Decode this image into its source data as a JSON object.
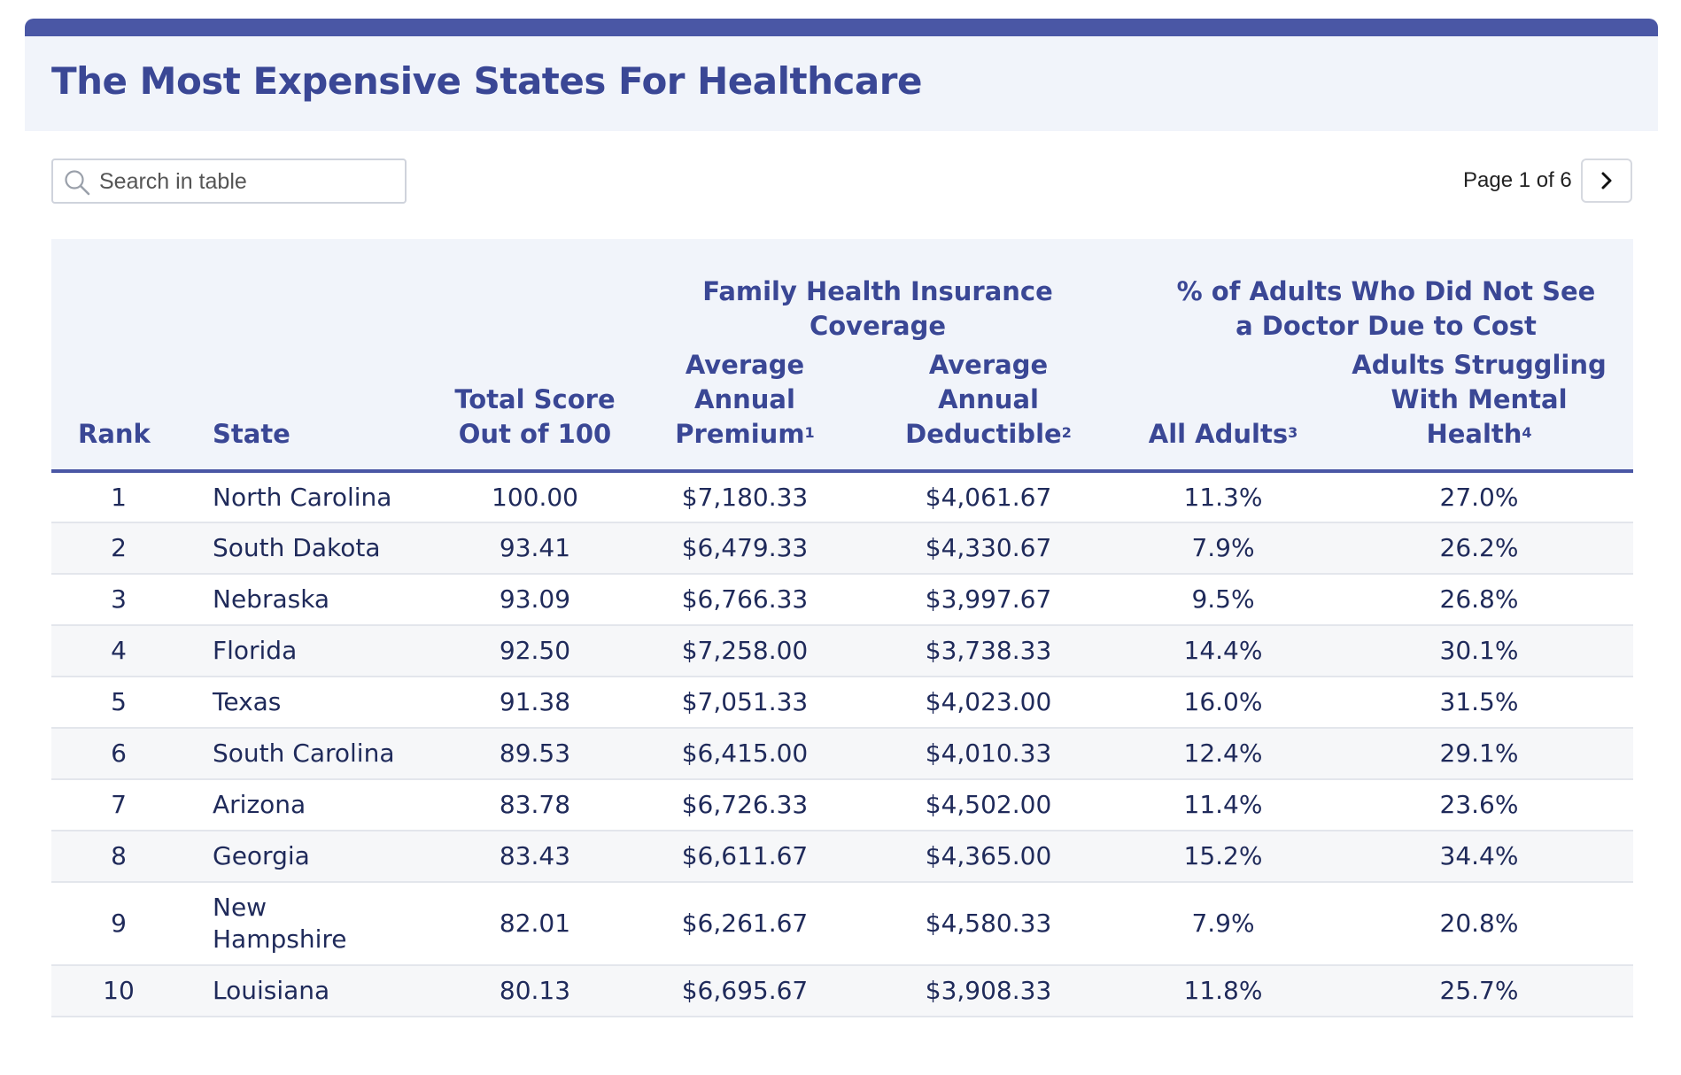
{
  "header": {
    "title": "The Most Expensive States For Healthcare"
  },
  "search": {
    "placeholder": "Search in table",
    "icon": "search-icon"
  },
  "pagination": {
    "label": "Page 1 of 6",
    "next_icon": "chevron-right-icon"
  },
  "colors": {
    "accent": "#4a57a5",
    "heading_text": "#3a4795",
    "header_bg": "#f1f4fa",
    "row_alt_bg": "#f6f7f9"
  },
  "table": {
    "group_headers": {
      "family": "Family Health Insurance Coverage",
      "doctor": "% of Adults Who Did Not See a Doctor Due to Cost"
    },
    "columns": {
      "rank": "Rank",
      "state": "State",
      "score": "Total Score Out of 100",
      "premium": "Average Annual Premium",
      "premium_note": "1",
      "deductible": "Average Annual Deductible",
      "deductible_note": "2",
      "all_adults": "All Adults",
      "all_adults_note": "3",
      "mental": "Adults Struggling With Mental Health",
      "mental_note": "4"
    },
    "rows": [
      {
        "rank": "1",
        "state": "North Carolina",
        "score": "100.00",
        "premium": "$7,180.33",
        "deductible": "$4,061.67",
        "all_adults": "11.3%",
        "mental": "27.0%"
      },
      {
        "rank": "2",
        "state": "South Dakota",
        "score": "93.41",
        "premium": "$6,479.33",
        "deductible": "$4,330.67",
        "all_adults": "7.9%",
        "mental": "26.2%"
      },
      {
        "rank": "3",
        "state": "Nebraska",
        "score": "93.09",
        "premium": "$6,766.33",
        "deductible": "$3,997.67",
        "all_adults": "9.5%",
        "mental": "26.8%"
      },
      {
        "rank": "4",
        "state": "Florida",
        "score": "92.50",
        "premium": "$7,258.00",
        "deductible": "$3,738.33",
        "all_adults": "14.4%",
        "mental": "30.1%"
      },
      {
        "rank": "5",
        "state": "Texas",
        "score": "91.38",
        "premium": "$7,051.33",
        "deductible": "$4,023.00",
        "all_adults": "16.0%",
        "mental": "31.5%"
      },
      {
        "rank": "6",
        "state": "South Carolina",
        "score": "89.53",
        "premium": "$6,415.00",
        "deductible": "$4,010.33",
        "all_adults": "12.4%",
        "mental": "29.1%"
      },
      {
        "rank": "7",
        "state": "Arizona",
        "score": "83.78",
        "premium": "$6,726.33",
        "deductible": "$4,502.00",
        "all_adults": "11.4%",
        "mental": "23.6%"
      },
      {
        "rank": "8",
        "state": "Georgia",
        "score": "83.43",
        "premium": "$6,611.67",
        "deductible": "$4,365.00",
        "all_adults": "15.2%",
        "mental": "34.4%"
      },
      {
        "rank": "9",
        "state": "New Hampshire",
        "score": "82.01",
        "premium": "$6,261.67",
        "deductible": "$4,580.33",
        "all_adults": "7.9%",
        "mental": "20.8%"
      },
      {
        "rank": "10",
        "state": "Louisiana",
        "score": "80.13",
        "premium": "$6,695.67",
        "deductible": "$3,908.33",
        "all_adults": "11.8%",
        "mental": "25.7%"
      }
    ]
  }
}
